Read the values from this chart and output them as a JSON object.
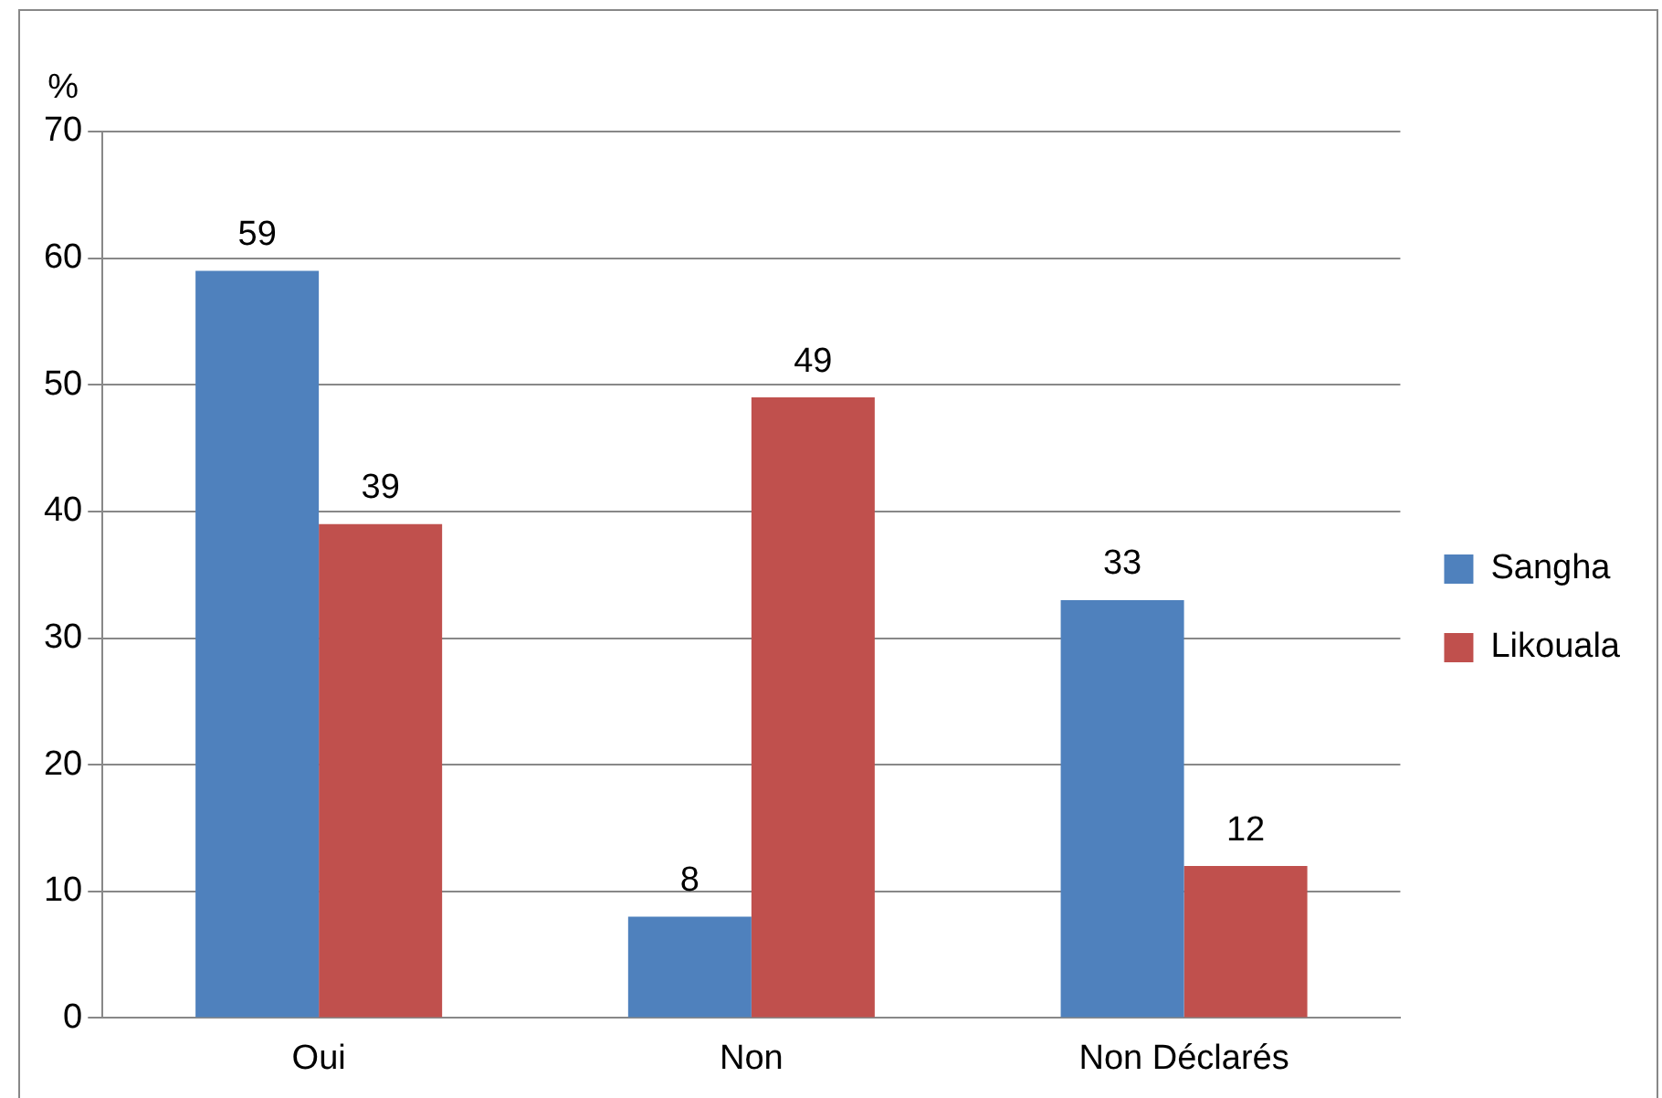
{
  "chart_data": {
    "type": "bar",
    "ylabel": "%",
    "categories": [
      "Oui",
      "Non",
      "Non Déclarés"
    ],
    "series": [
      {
        "name": "Sangha",
        "color": "#4f81bd",
        "values": [
          59,
          8,
          33
        ]
      },
      {
        "name": "Likouala",
        "color": "#c0504d",
        "values": [
          39,
          49,
          12
        ]
      }
    ],
    "ylim": [
      0,
      70
    ],
    "yticks": [
      0,
      10,
      20,
      30,
      40,
      50,
      60,
      70
    ],
    "grid": "y",
    "legend": "right",
    "data_labels": true
  }
}
